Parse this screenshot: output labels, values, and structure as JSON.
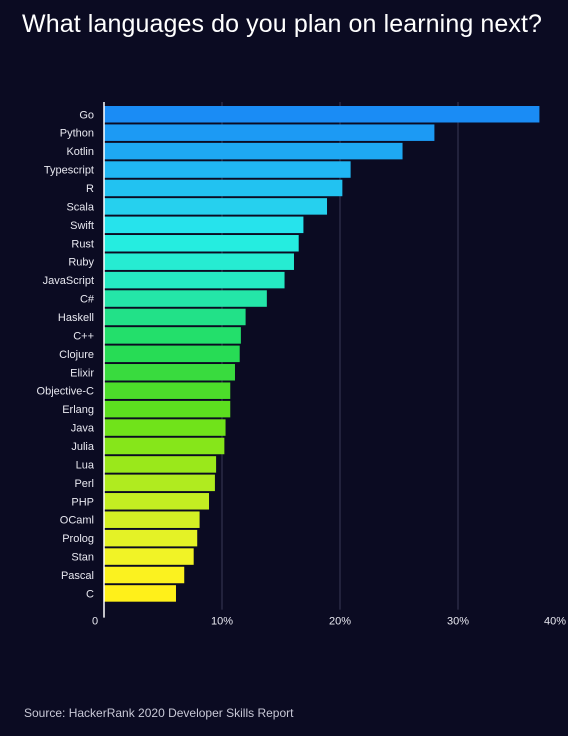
{
  "title": "What languages do you plan on learning next?",
  "source": "Source: HackerRank 2020 Developer Skills Report",
  "chart_data": {
    "type": "bar",
    "orientation": "horizontal",
    "title": "What languages do you plan on learning next?",
    "categories": [
      "Go",
      "Python",
      "Kotlin",
      "Typescript",
      "R",
      "Scala",
      "Swift",
      "Rust",
      "Ruby",
      "JavaScript",
      "C#",
      "Haskell",
      "C++",
      "Clojure",
      "Elixir",
      "Objective-C",
      "Erlang",
      "Java",
      "Julia",
      "Lua",
      "Perl",
      "PHP",
      "OCaml",
      "Prolog",
      "Stan",
      "Pascal",
      "C"
    ],
    "values": [
      36.9,
      28.0,
      25.3,
      20.9,
      20.2,
      18.9,
      16.9,
      16.5,
      16.1,
      15.3,
      13.8,
      12.0,
      11.6,
      11.5,
      11.1,
      10.7,
      10.7,
      10.3,
      10.2,
      9.5,
      9.4,
      8.9,
      8.1,
      7.9,
      7.6,
      6.8,
      6.1
    ],
    "xlim": [
      0,
      40
    ],
    "x_ticks": [
      "0",
      "10%",
      "20%",
      "30%",
      "40%"
    ],
    "x_tick_values": [
      0,
      10,
      20,
      30,
      40
    ],
    "grid": true,
    "colors": [
      "#1a8cf5",
      "#1c9af4",
      "#1ea8f3",
      "#20b6f3",
      "#22c2f1",
      "#26d0ee",
      "#26e3ec",
      "#25ede0",
      "#26ecd2",
      "#25e9c2",
      "#24e6a8",
      "#22e188",
      "#23df6b",
      "#27dc55",
      "#39db3e",
      "#4cdd2a",
      "#5cdf1f",
      "#70e31a",
      "#86e61a",
      "#9ae81b",
      "#b0eb1f",
      "#c4ee22",
      "#d4f024",
      "#e4f226",
      "#f1f326",
      "#fbf21f",
      "#fff01a"
    ]
  }
}
